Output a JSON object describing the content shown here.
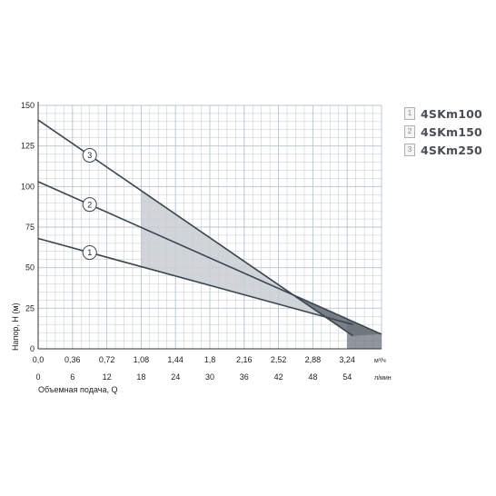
{
  "chart_data": {
    "type": "line",
    "ylabel": "Напор, Н (м)",
    "xlabel": "Объемная подача, Q",
    "x_unit_top": "м³/ч",
    "x_unit_bottom": "л/мин",
    "xlim_m3h": [
      0,
      3.6
    ],
    "ylim": [
      0,
      150
    ],
    "y_ticks": [
      "150",
      "125",
      "100",
      "75",
      "50",
      "25",
      "0"
    ],
    "x_ticks_top": [
      "0,0",
      "0,36",
      "0,72",
      "1,08",
      "1,44",
      "1,8",
      "2,16",
      "2,52",
      "2,88",
      "3,24"
    ],
    "x_ticks_bottom": [
      "0",
      "6",
      "12",
      "18",
      "24",
      "30",
      "36",
      "42",
      "48",
      "54"
    ],
    "grid": true,
    "shaded_region_m3h": [
      1.08,
      3.24
    ],
    "series": [
      {
        "name": "4SKm100",
        "marker": "1",
        "x": [
          0,
          3.3
        ],
        "y": [
          68,
          15
        ]
      },
      {
        "name": "4SKm150",
        "marker": "2",
        "x": [
          0,
          3.6
        ],
        "y": [
          103,
          9
        ]
      },
      {
        "name": "4SKm250",
        "marker": "3",
        "x": [
          0,
          3.3
        ],
        "y": [
          141,
          8
        ]
      }
    ]
  },
  "legend": [
    {
      "num": "1",
      "label": "4SKm100"
    },
    {
      "num": "2",
      "label": "4SKm150"
    },
    {
      "num": "3",
      "label": "4SKm250"
    }
  ],
  "colors": {
    "grid": "#b8c4cc",
    "line": "#3c4650",
    "shade": "#c9ced3",
    "shade_dark": "#6b737b"
  }
}
